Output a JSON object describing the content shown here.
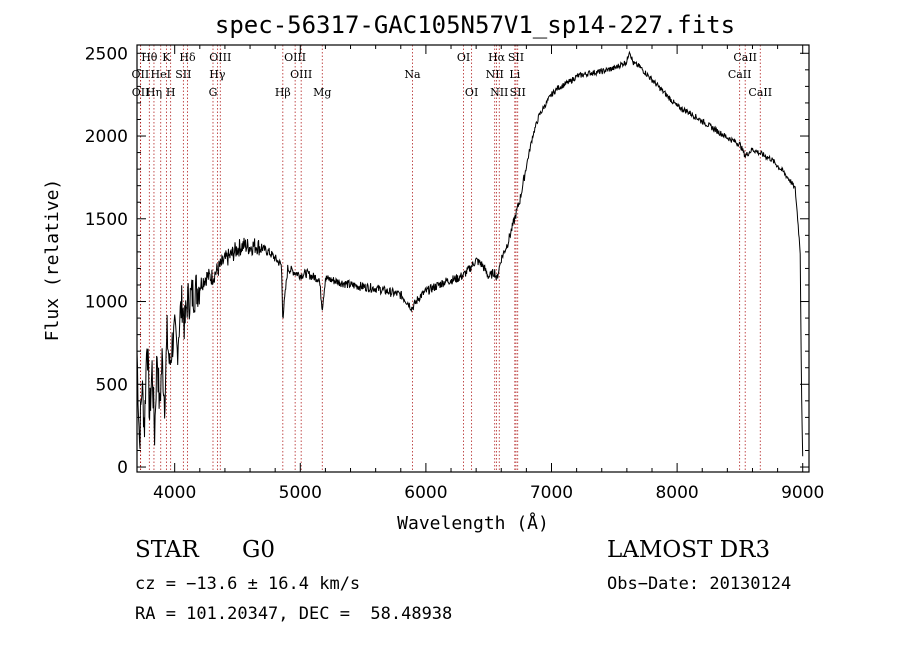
{
  "chart_data": {
    "type": "line",
    "title": "spec-56317-GAC105N57V1_sp14-227.fits",
    "xlabel": "Wavelength (Å)",
    "ylabel": "Flux (relative)",
    "xlim": [
      3700,
      9050
    ],
    "ylim": [
      -30,
      2550
    ],
    "xticks": [
      4000,
      5000,
      6000,
      7000,
      8000,
      9000
    ],
    "yticks": [
      0,
      500,
      1000,
      1500,
      2000,
      2500
    ],
    "series": [
      {
        "name": "flux",
        "x": [
          3700,
          3720,
          3740,
          3760,
          3780,
          3800,
          3820,
          3840,
          3860,
          3880,
          3900,
          3920,
          3940,
          3960,
          3980,
          4000,
          4020,
          4040,
          4060,
          4080,
          4100,
          4150,
          4200,
          4250,
          4300,
          4350,
          4400,
          4450,
          4500,
          4550,
          4600,
          4650,
          4700,
          4750,
          4800,
          4850,
          4861,
          4900,
          4950,
          5000,
          5050,
          5100,
          5150,
          5175,
          5200,
          5300,
          5400,
          5500,
          5600,
          5700,
          5800,
          5850,
          5890,
          5950,
          6000,
          6050,
          6100,
          6150,
          6200,
          6250,
          6300,
          6350,
          6400,
          6450,
          6500,
          6550,
          6563,
          6600,
          6650,
          6700,
          6750,
          6800,
          6850,
          6900,
          6950,
          7000,
          7050,
          7100,
          7150,
          7200,
          7300,
          7400,
          7500,
          7550,
          7600,
          7620,
          7650,
          7700,
          7750,
          7800,
          7850,
          7900,
          7950,
          8000,
          8100,
          8200,
          8300,
          8400,
          8500,
          8542,
          8600,
          8650,
          8700,
          8750,
          8800,
          8850,
          8900,
          8940,
          8960,
          8980,
          8990,
          9000
        ],
        "y": [
          700,
          150,
          500,
          250,
          800,
          300,
          600,
          200,
          700,
          350,
          650,
          400,
          800,
          600,
          750,
          800,
          700,
          900,
          1000,
          850,
          1000,
          1050,
          1100,
          1150,
          1150,
          1200,
          1250,
          1280,
          1320,
          1340,
          1330,
          1340,
          1320,
          1300,
          1260,
          1220,
          900,
          1200,
          1180,
          1160,
          1170,
          1150,
          1140,
          960,
          1140,
          1120,
          1100,
          1090,
          1080,
          1060,
          1040,
          1000,
          960,
          1030,
          1060,
          1080,
          1100,
          1120,
          1130,
          1140,
          1160,
          1200,
          1250,
          1220,
          1150,
          1180,
          1130,
          1260,
          1350,
          1480,
          1620,
          1820,
          2000,
          2120,
          2190,
          2250,
          2290,
          2310,
          2330,
          2360,
          2380,
          2390,
          2410,
          2430,
          2450,
          2520,
          2440,
          2420,
          2380,
          2340,
          2300,
          2260,
          2220,
          2180,
          2140,
          2090,
          2040,
          1990,
          1950,
          1880,
          1920,
          1900,
          1880,
          1860,
          1820,
          1780,
          1730,
          1680,
          1500,
          1300,
          500,
          50
        ]
      }
    ],
    "lines_top": [
      {
        "label": "Hθ",
        "x": 3798
      },
      {
        "label": "K",
        "x": 3934
      },
      {
        "label": "Hδ",
        "x": 4102
      },
      {
        "label": "OIII",
        "x": 4363
      },
      {
        "label": "OIII",
        "x": 4959
      },
      {
        "label": "OI",
        "x": 6300
      },
      {
        "label": "Hα",
        "x": 6563
      },
      {
        "label": "SII",
        "x": 6717
      },
      {
        "label": "CaII",
        "x": 8542
      }
    ],
    "lines_mid": [
      {
        "label": "OII",
        "x": 3727
      },
      {
        "label": "HeI",
        "x": 3889
      },
      {
        "label": "SII",
        "x": 4069
      },
      {
        "label": "Hγ",
        "x": 4340
      },
      {
        "label": "OIII",
        "x": 5007
      },
      {
        "label": "Na",
        "x": 5893
      },
      {
        "label": "NII",
        "x": 6548
      },
      {
        "label": "Li",
        "x": 6708
      },
      {
        "label": "CaII",
        "x": 8498
      }
    ],
    "lines_low": [
      {
        "label": "OII",
        "x": 3729
      },
      {
        "label": "Hη",
        "x": 3835
      },
      {
        "label": "H",
        "x": 3968
      },
      {
        "label": "G",
        "x": 4305
      },
      {
        "label": "Hβ",
        "x": 4861
      },
      {
        "label": "Mg",
        "x": 5175
      },
      {
        "label": "OI",
        "x": 6364
      },
      {
        "label": "NII",
        "x": 6584
      },
      {
        "label": "SII",
        "x": 6731
      },
      {
        "label": "CaII",
        "x": 8662
      }
    ]
  },
  "info": {
    "object_class": "STAR",
    "subclass": "G0",
    "survey": "LAMOST DR3",
    "cz": "cz = −13.6 ± 16.4 km/s",
    "obs_date": "Obs−Date: 20130124",
    "coords": "RA = 101.20347, DEC =  58.48938"
  }
}
